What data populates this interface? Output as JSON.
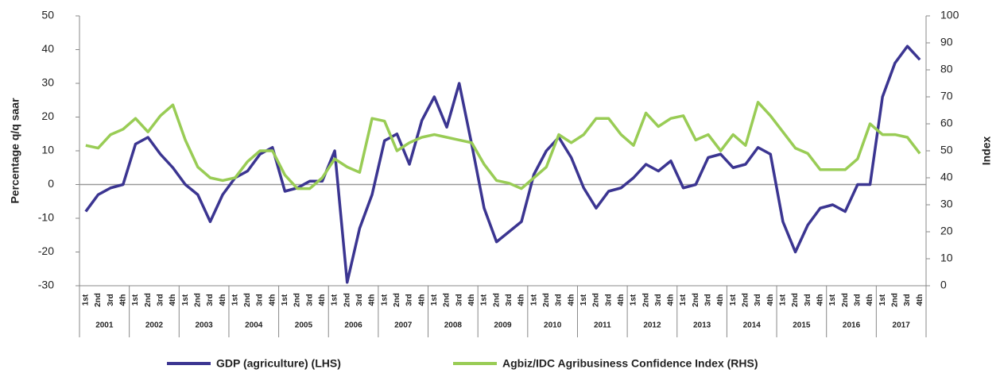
{
  "chart_data": {
    "type": "line",
    "categories": [
      "1st",
      "2nd",
      "3rd",
      "4th",
      "1st",
      "2nd",
      "3rd",
      "4th",
      "1st",
      "2nd",
      "3rd",
      "4th",
      "1st",
      "2nd",
      "3rd",
      "4th",
      "1st",
      "2nd",
      "3rd",
      "4th",
      "1st",
      "2nd",
      "3rd",
      "4th",
      "1st",
      "2nd",
      "3rd",
      "4th",
      "1st",
      "2nd",
      "3rd",
      "4th",
      "1st",
      "2nd",
      "3rd",
      "4th",
      "1st",
      "2nd",
      "3rd",
      "4th",
      "1st",
      "2nd",
      "3rd",
      "4th",
      "1st",
      "2nd",
      "3rd",
      "4th",
      "1st",
      "2nd",
      "3rd",
      "4th",
      "1st",
      "2nd",
      "3rd",
      "4th",
      "1st",
      "2nd",
      "3rd",
      "4th",
      "1st",
      "2nd",
      "3rd",
      "4th",
      "1st",
      "2nd",
      "3rd",
      "4th"
    ],
    "groups": [
      "2001",
      "2002",
      "2003",
      "2004",
      "2005",
      "2006",
      "2007",
      "2008",
      "2009",
      "2010",
      "2011",
      "2012",
      "2013",
      "2014",
      "2015",
      "2016",
      "2017"
    ],
    "ylabel": "Percentage q/q saar",
    "y2label": "Index",
    "ylim": [
      -30,
      50
    ],
    "yticks": [
      -30,
      -20,
      -10,
      0,
      10,
      20,
      30,
      40,
      50
    ],
    "y2lim": [
      0,
      100
    ],
    "y2ticks": [
      0,
      10,
      20,
      30,
      40,
      50,
      60,
      70,
      80,
      90,
      100
    ],
    "series": [
      {
        "name": "GDP (agriculture) (LHS)",
        "color": "#3b3591",
        "values": [
          -8,
          -3,
          -1,
          0,
          12,
          14,
          9,
          5,
          0,
          -3,
          -11,
          -3,
          2,
          4,
          9,
          11,
          -2,
          -1,
          1,
          1,
          10,
          -29,
          -13,
          -3,
          13,
          15,
          6,
          19,
          26,
          17,
          30,
          12,
          -7,
          -17,
          -14,
          -11,
          3,
          10,
          14,
          8,
          -1,
          -7,
          -2,
          -1,
          2,
          6,
          4,
          7,
          -1,
          0,
          8,
          9,
          5,
          6,
          11,
          9,
          -11,
          -20,
          -12,
          -7,
          -6,
          -8,
          0,
          0,
          26,
          36,
          41,
          37
        ]
      },
      {
        "name": "Agbiz/IDC Agribusiness Confidence Index (RHS)",
        "color": "#99cc55",
        "axis": "y2",
        "values": [
          52,
          51,
          56,
          58,
          62,
          57,
          63,
          67,
          54,
          44,
          40,
          39,
          40,
          46,
          50,
          50,
          41,
          36,
          36,
          40,
          47,
          44,
          42,
          62,
          61,
          50,
          53,
          55,
          56,
          55,
          54,
          53,
          45,
          39,
          38,
          36,
          40,
          44,
          56,
          53,
          56,
          62,
          62,
          56,
          52,
          64,
          59,
          62,
          63,
          54,
          56,
          50,
          56,
          52,
          68,
          63,
          57,
          51,
          49,
          43,
          43,
          43,
          47,
          60,
          56,
          56,
          55,
          49
        ]
      }
    ]
  }
}
